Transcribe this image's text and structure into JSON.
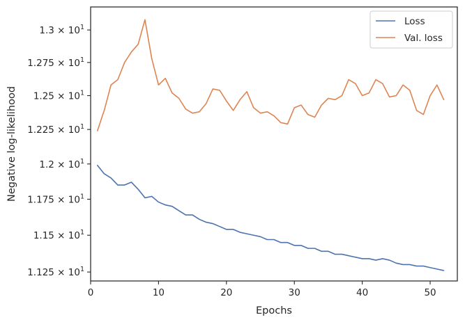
{
  "chart_data": {
    "type": "line",
    "xlabel": "Epochs",
    "ylabel": "Negative log-likelihood",
    "xlim": [
      0,
      54
    ],
    "ylim": [
      11.19,
      13.18
    ],
    "xticks": [
      0,
      10,
      20,
      30,
      40,
      50
    ],
    "xtick_labels": [
      "0",
      "10",
      "20",
      "30",
      "40",
      "50"
    ],
    "yticks": [
      11.25,
      11.5,
      11.75,
      12.0,
      12.25,
      12.5,
      12.75,
      13.0
    ],
    "ytick_mantissas": [
      "1.125",
      "1.15",
      "1.175",
      "1.2",
      "1.225",
      "1.25",
      "1.275",
      "1.3"
    ],
    "ytick_base": "10",
    "ytick_exp": "1",
    "grid": false,
    "legend_position": "top-right",
    "x": [
      1,
      2,
      3,
      4,
      5,
      6,
      7,
      8,
      9,
      10,
      11,
      12,
      13,
      14,
      15,
      16,
      17,
      18,
      19,
      20,
      21,
      22,
      23,
      24,
      25,
      26,
      27,
      28,
      29,
      30,
      31,
      32,
      33,
      34,
      35,
      36,
      37,
      38,
      39,
      40,
      41,
      42,
      43,
      44,
      45,
      46,
      47,
      48,
      49,
      50,
      51,
      52
    ],
    "series": [
      {
        "name": "Loss",
        "color": "#4c72b0",
        "values": [
          11.99,
          11.93,
          11.9,
          11.85,
          11.85,
          11.87,
          11.82,
          11.76,
          11.77,
          11.73,
          11.71,
          11.7,
          11.67,
          11.64,
          11.64,
          11.61,
          11.59,
          11.58,
          11.56,
          11.54,
          11.54,
          11.52,
          11.51,
          11.5,
          11.49,
          11.47,
          11.47,
          11.45,
          11.45,
          11.43,
          11.43,
          11.41,
          11.41,
          11.39,
          11.39,
          11.37,
          11.37,
          11.36,
          11.35,
          11.34,
          11.34,
          11.33,
          11.34,
          11.33,
          11.31,
          11.3,
          11.3,
          11.29,
          11.29,
          11.28,
          11.27,
          11.26
        ]
      },
      {
        "name": "Val. loss",
        "color": "#dd8452",
        "values": [
          12.24,
          12.39,
          12.58,
          12.62,
          12.75,
          12.83,
          12.89,
          13.08,
          12.78,
          12.58,
          12.63,
          12.52,
          12.48,
          12.4,
          12.37,
          12.38,
          12.44,
          12.55,
          12.54,
          12.46,
          12.39,
          12.47,
          12.53,
          12.41,
          12.37,
          12.38,
          12.35,
          12.3,
          12.29,
          12.41,
          12.43,
          12.36,
          12.34,
          12.43,
          12.48,
          12.47,
          12.5,
          12.62,
          12.59,
          12.5,
          12.52,
          12.62,
          12.59,
          12.49,
          12.5,
          12.58,
          12.54,
          12.39,
          12.36,
          12.5,
          12.58,
          12.47
        ]
      }
    ]
  }
}
